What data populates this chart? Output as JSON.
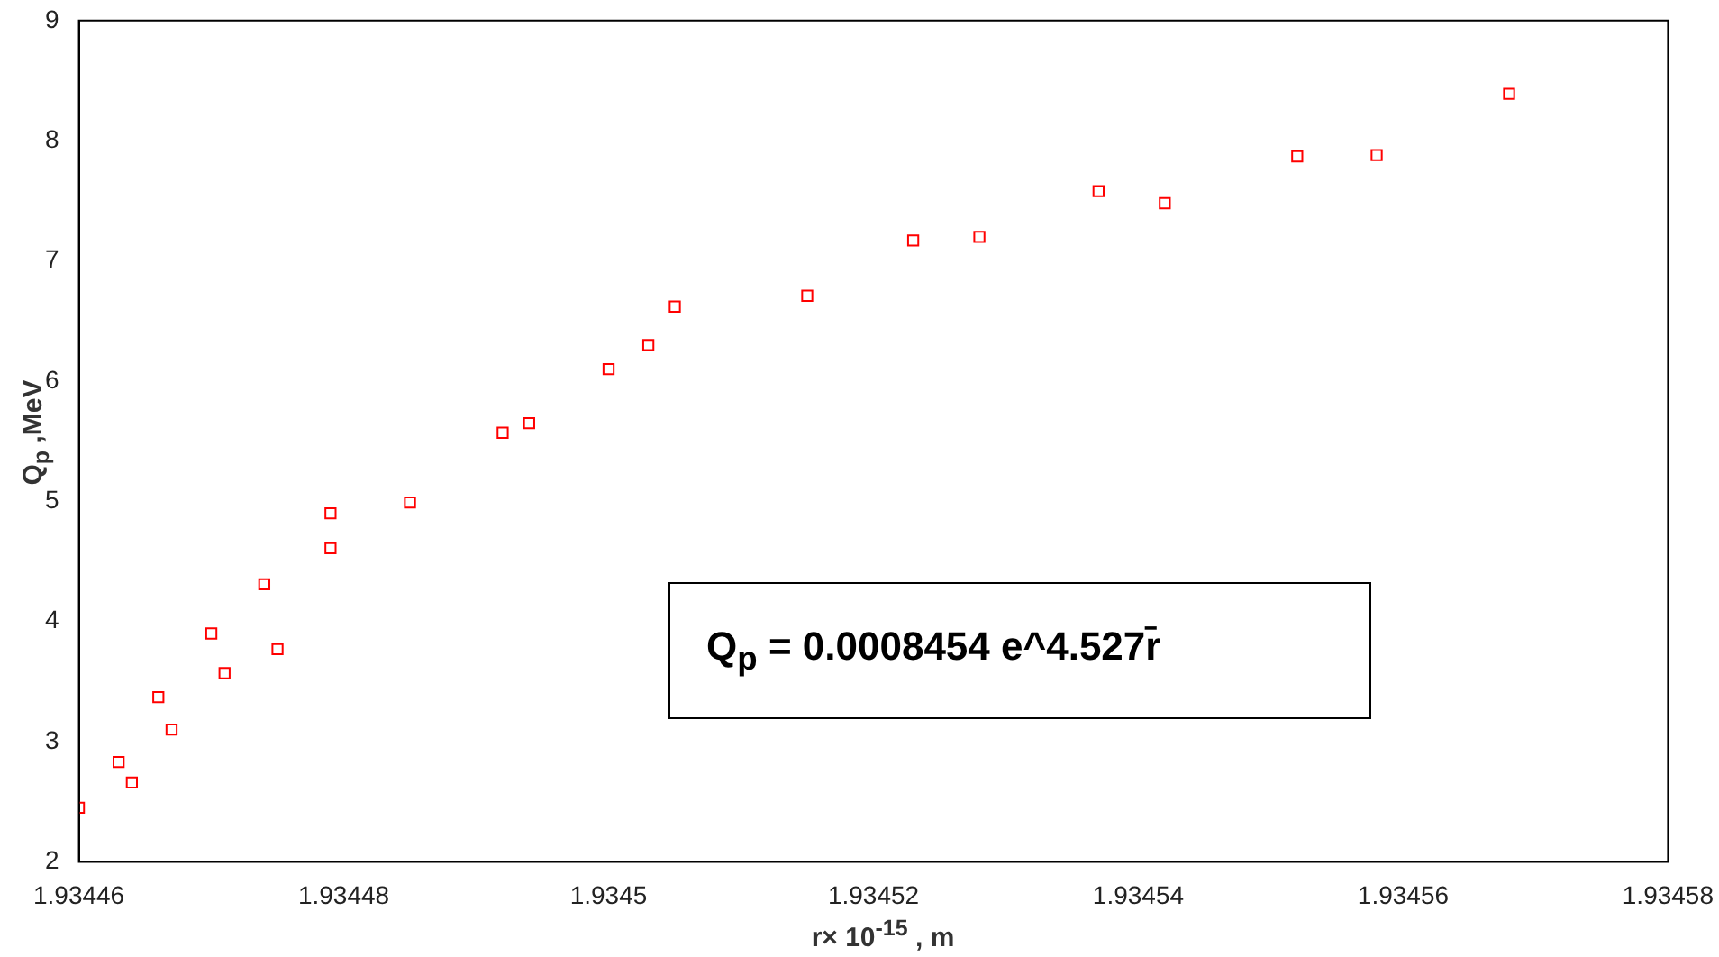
{
  "chart_data": {
    "type": "scatter",
    "xlabel": "r× 10$^{-15}$ , m",
    "ylabel": "Q$_{p}$ ,MeV",
    "x": [
      1.93446,
      1.934463,
      1.934464,
      1.934466,
      1.934467,
      1.93447,
      1.934471,
      1.934474,
      1.934475,
      1.934479,
      1.934479,
      1.934485,
      1.934492,
      1.934494,
      1.9345,
      1.934503,
      1.934505,
      1.934515,
      1.934523,
      1.934528,
      1.934537,
      1.934542,
      1.934552,
      1.934558,
      1.934568
    ],
    "series": [
      {
        "color": "#ff0000",
        "values": [
          2.45,
          2.83,
          2.66,
          3.37,
          3.1,
          3.9,
          3.57,
          4.31,
          3.77,
          4.9,
          4.61,
          4.99,
          5.57,
          5.65,
          6.1,
          6.3,
          6.62,
          6.71,
          7.17,
          7.2,
          7.58,
          7.48,
          7.87,
          7.88,
          8.39
        ]
      }
    ],
    "xlim": [
      1.93446,
      1.93458
    ],
    "xticks": [
      1.93446,
      1.93448,
      1.9345,
      1.93452,
      1.93454,
      1.93456,
      1.93458
    ],
    "ylim": [
      2,
      9
    ],
    "yticks": [
      2,
      3,
      4,
      5,
      6,
      7,
      8,
      9
    ],
    "grid": false,
    "legend": false,
    "marker": "square",
    "annotations": [
      "Q$_{p}$ = 0.0008454 e^4.527r̄"
    ]
  }
}
